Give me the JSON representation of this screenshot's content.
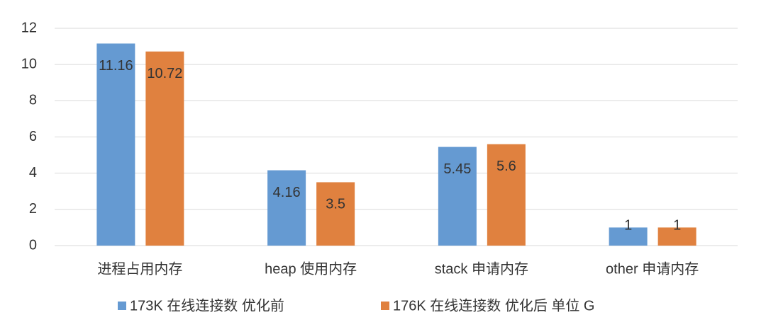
{
  "chart_data": {
    "type": "bar",
    "categories": [
      "进程占用内存",
      "heap 使用内存",
      "stack 申请内存",
      "other 申请内存"
    ],
    "series": [
      {
        "name": "173K 在线连接数 优化前",
        "color": "#659ad2",
        "values": [
          11.16,
          4.16,
          5.45,
          1
        ]
      },
      {
        "name": "176K 在线连接数 优化后  单位 G",
        "color": "#e0813f",
        "values": [
          10.72,
          3.5,
          5.6,
          1
        ]
      }
    ],
    "ylim": [
      0,
      12
    ],
    "yticks": [
      0,
      2,
      4,
      6,
      8,
      10,
      12
    ],
    "grid": true,
    "legend": "bottom"
  }
}
